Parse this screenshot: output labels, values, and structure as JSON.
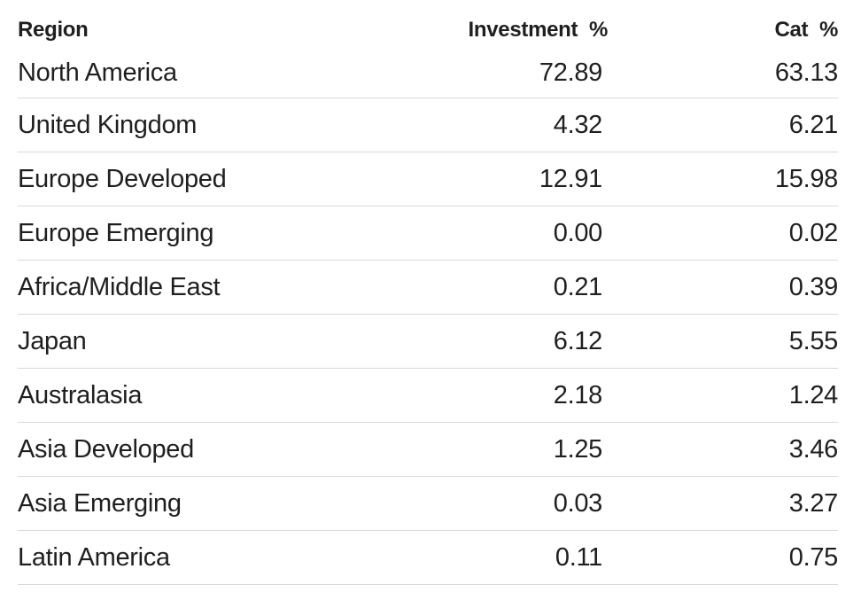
{
  "chart_data": {
    "type": "table",
    "columns": [
      "Region",
      "Investment  %",
      "Cat  %"
    ],
    "rows": [
      {
        "region": "North America",
        "investment": "72.89",
        "cat": "63.13"
      },
      {
        "region": "United Kingdom",
        "investment": "4.32",
        "cat": "6.21"
      },
      {
        "region": "Europe Developed",
        "investment": "12.91",
        "cat": "15.98"
      },
      {
        "region": "Europe Emerging",
        "investment": "0.00",
        "cat": "0.02"
      },
      {
        "region": "Africa/Middle East",
        "investment": "0.21",
        "cat": "0.39"
      },
      {
        "region": "Japan",
        "investment": "6.12",
        "cat": "5.55"
      },
      {
        "region": "Australasia",
        "investment": "2.18",
        "cat": "1.24"
      },
      {
        "region": "Asia Developed",
        "investment": "1.25",
        "cat": "3.46"
      },
      {
        "region": "Asia Emerging",
        "investment": "0.03",
        "cat": "3.27"
      },
      {
        "region": "Latin America",
        "investment": "0.11",
        "cat": "0.75"
      }
    ]
  }
}
